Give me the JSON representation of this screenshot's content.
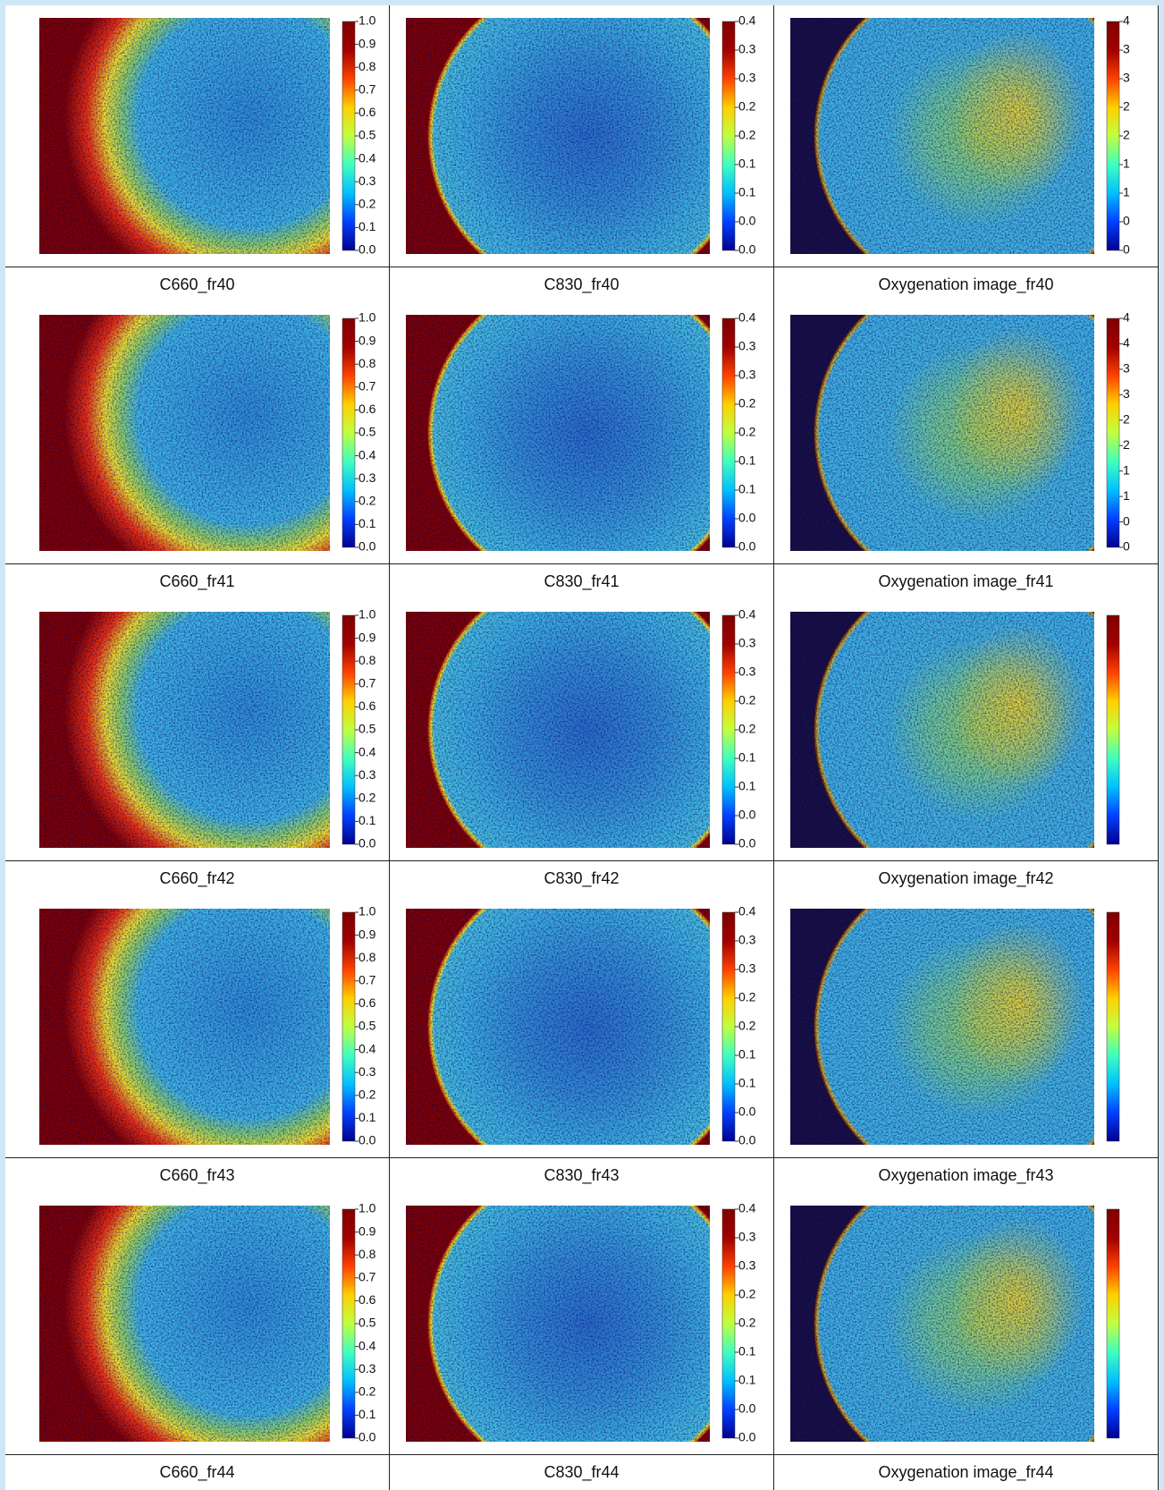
{
  "panels": [
    {
      "caption": "C660_fr40",
      "colorbar_labels": [
        "1.0",
        "0.9",
        "0.8",
        "0.7",
        "0.6",
        "0.5",
        "0.4",
        "0.3",
        "0.2",
        "0.1",
        "0.0"
      ]
    },
    {
      "caption": "C830_fr40",
      "colorbar_labels": [
        "0.4",
        "0.3",
        "0.3",
        "0.2",
        "0.2",
        "0.1",
        "0.1",
        "0.0",
        "0.0"
      ]
    },
    {
      "caption": "Oxygenation image_fr40",
      "colorbar_labels": [
        "4",
        "3",
        "3",
        "2",
        "2",
        "1",
        "1",
        "0",
        "0"
      ]
    },
    {
      "caption": "C660_fr41",
      "colorbar_labels": [
        "1.0",
        "0.9",
        "0.8",
        "0.7",
        "0.6",
        "0.5",
        "0.4",
        "0.3",
        "0.2",
        "0.1",
        "0.0"
      ]
    },
    {
      "caption": "C830_fr41",
      "colorbar_labels": [
        "0.4",
        "0.3",
        "0.3",
        "0.2",
        "0.2",
        "0.1",
        "0.1",
        "0.0",
        "0.0"
      ]
    },
    {
      "caption": "Oxygenation image_fr41",
      "colorbar_labels": [
        "4",
        "4",
        "3",
        "3",
        "2",
        "2",
        "1",
        "1",
        "0",
        "0"
      ]
    },
    {
      "caption": "C660_fr42",
      "colorbar_labels": [
        "1.0",
        "0.9",
        "0.8",
        "0.7",
        "0.6",
        "0.5",
        "0.4",
        "0.3",
        "0.2",
        "0.1",
        "0.0"
      ]
    },
    {
      "caption": "C830_fr42",
      "colorbar_labels": [
        "0.4",
        "0.3",
        "0.3",
        "0.2",
        "0.2",
        "0.1",
        "0.1",
        "0.0",
        "0.0"
      ]
    },
    {
      "caption": "Oxygenation image_fr42",
      "colorbar_labels": []
    },
    {
      "caption": "C660_fr43",
      "colorbar_labels": [
        "1.0",
        "0.9",
        "0.8",
        "0.7",
        "0.6",
        "0.5",
        "0.4",
        "0.3",
        "0.2",
        "0.1",
        "0.0"
      ]
    },
    {
      "caption": "C830_fr43",
      "colorbar_labels": [
        "0.4",
        "0.3",
        "0.3",
        "0.2",
        "0.2",
        "0.1",
        "0.1",
        "0.0",
        "0.0"
      ]
    },
    {
      "caption": "Oxygenation image_fr43",
      "colorbar_labels": []
    },
    {
      "caption": "C660_fr44",
      "colorbar_labels": [
        "1.0",
        "0.9",
        "0.8",
        "0.7",
        "0.6",
        "0.5",
        "0.4",
        "0.3",
        "0.2",
        "0.1",
        "0.0"
      ]
    },
    {
      "caption": "C830_fr44",
      "colorbar_labels": [
        "0.4",
        "0.3",
        "0.3",
        "0.2",
        "0.2",
        "0.1",
        "0.1",
        "0.0",
        "0.0"
      ]
    },
    {
      "caption": "Oxygenation image_fr44",
      "colorbar_labels": []
    }
  ]
}
